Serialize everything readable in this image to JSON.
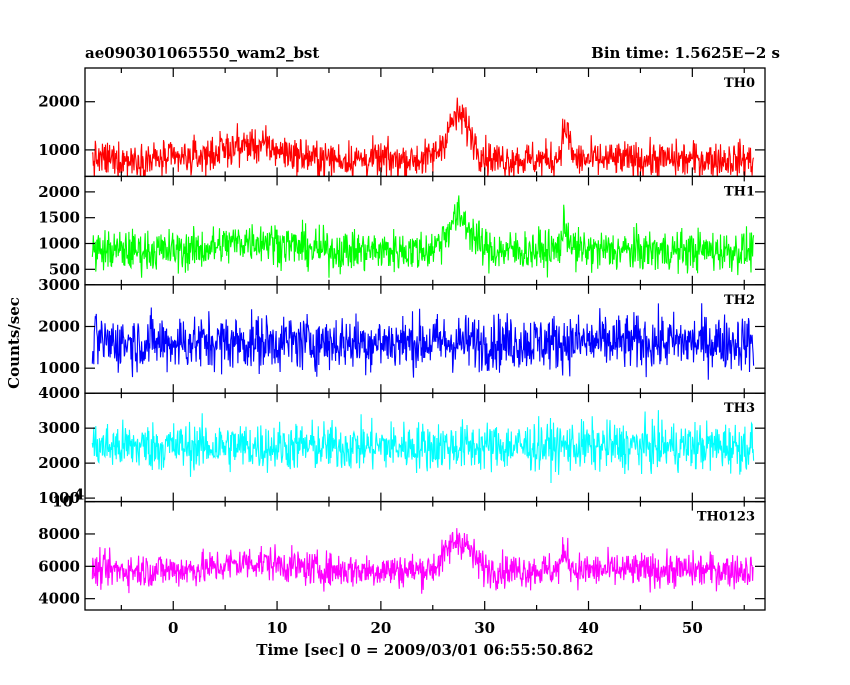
{
  "header": {
    "title": "ae090301065550_wam2_bst",
    "bin_time": "Bin time: 1.5625E−2 s"
  },
  "chart_data": {
    "type": "line",
    "xlabel": "Time [sec] 0 = 2009/03/01 06:55:50.862",
    "ylabel": "Counts/sec",
    "xlim": [
      -8.5,
      57
    ],
    "xticks": [
      0,
      10,
      20,
      30,
      40,
      50
    ],
    "x_range_data": [
      -7.8,
      55.9
    ],
    "panels": [
      {
        "name": "TH0",
        "color": "#ff0000",
        "ylim": [
          450,
          2700
        ],
        "yticks": [
          1000,
          2000
        ],
        "baseline": 800,
        "spread": 560,
        "bumps": [
          [
            7.5,
            300,
            4
          ],
          [
            27.5,
            900,
            1.6
          ],
          [
            37.8,
            650,
            0.5
          ]
        ]
      },
      {
        "name": "TH1",
        "color": "#00ff00",
        "ylim": [
          200,
          2300
        ],
        "yticks": [
          500,
          1000,
          1500,
          2000
        ],
        "baseline": 860,
        "spread": 600,
        "bumps": [
          [
            8,
            200,
            4
          ],
          [
            27.5,
            650,
            1.6
          ],
          [
            37.8,
            450,
            0.5
          ]
        ]
      },
      {
        "name": "TH2",
        "color": "#0000ff",
        "ylim": [
          400,
          3000
        ],
        "yticks": [
          1000,
          2000,
          3000
        ],
        "baseline": 1620,
        "spread": 1000,
        "bumps": []
      },
      {
        "name": "TH3",
        "color": "#00ffff",
        "ylim": [
          900,
          4000
        ],
        "yticks": [
          1000,
          2000,
          3000,
          4000
        ],
        "baseline": 2480,
        "spread": 1050,
        "bumps": []
      },
      {
        "name": "TH0123",
        "color": "#ff00ff",
        "ylim": [
          3300,
          10000
        ],
        "yticks": [
          4000,
          6000,
          8000,
          10000
        ],
        "baseline": 5760,
        "spread": 1600,
        "bumps": [
          [
            8,
            500,
            4
          ],
          [
            27.5,
            1900,
            1.6
          ],
          [
            37.8,
            1100,
            0.5
          ]
        ]
      }
    ]
  }
}
